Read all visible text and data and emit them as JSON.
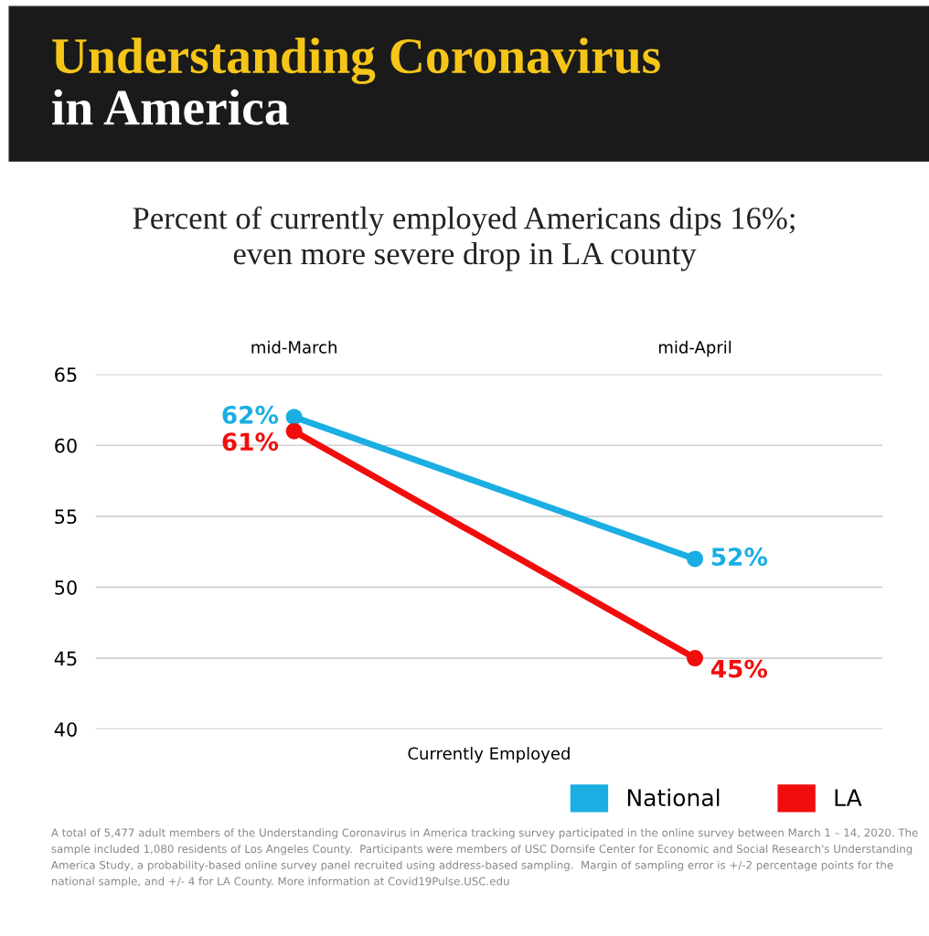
{
  "chart_data": {
    "type": "line",
    "title": "Understanding Coronavirus\nin America",
    "subtitle": "Percent of currently employed Americans dips 16%;\neven more severe drop in LA county",
    "xlabel": "Currently Employed",
    "categories": [
      "mid-March",
      "mid-April"
    ],
    "series": [
      {
        "name": "National",
        "color": "#1aaee3",
        "values": [
          62,
          52
        ],
        "value_labels": [
          "62%",
          "52%"
        ]
      },
      {
        "name": "LA",
        "color": "#f20d0d",
        "values": [
          61,
          45
        ],
        "value_labels": [
          "61%",
          "45%"
        ]
      }
    ],
    "ylim": [
      40,
      65
    ],
    "yticks": [
      40,
      45,
      50,
      55,
      60,
      65
    ],
    "grid": "y",
    "legend": "bottom right",
    "marker": "circle",
    "line_style": "solid",
    "annotations": [
      "A total of 5,477 adult members of the Understanding Coronavirus in America tracking survey participated in the online survey between March 1 – 14, 2020. The sample included 1,080 residents of Los Angeles County.  Participants were members of USC Dornsife Center for Economic and Social Research's Understanding America Study, a probability-based online survey panel recruited using address-based sampling.  Margin of sampling error is +/-2 percentage points for the national sample, and +/- 4 for LA County. More information at Covid19Pulse.USC.edu"
    ]
  }
}
